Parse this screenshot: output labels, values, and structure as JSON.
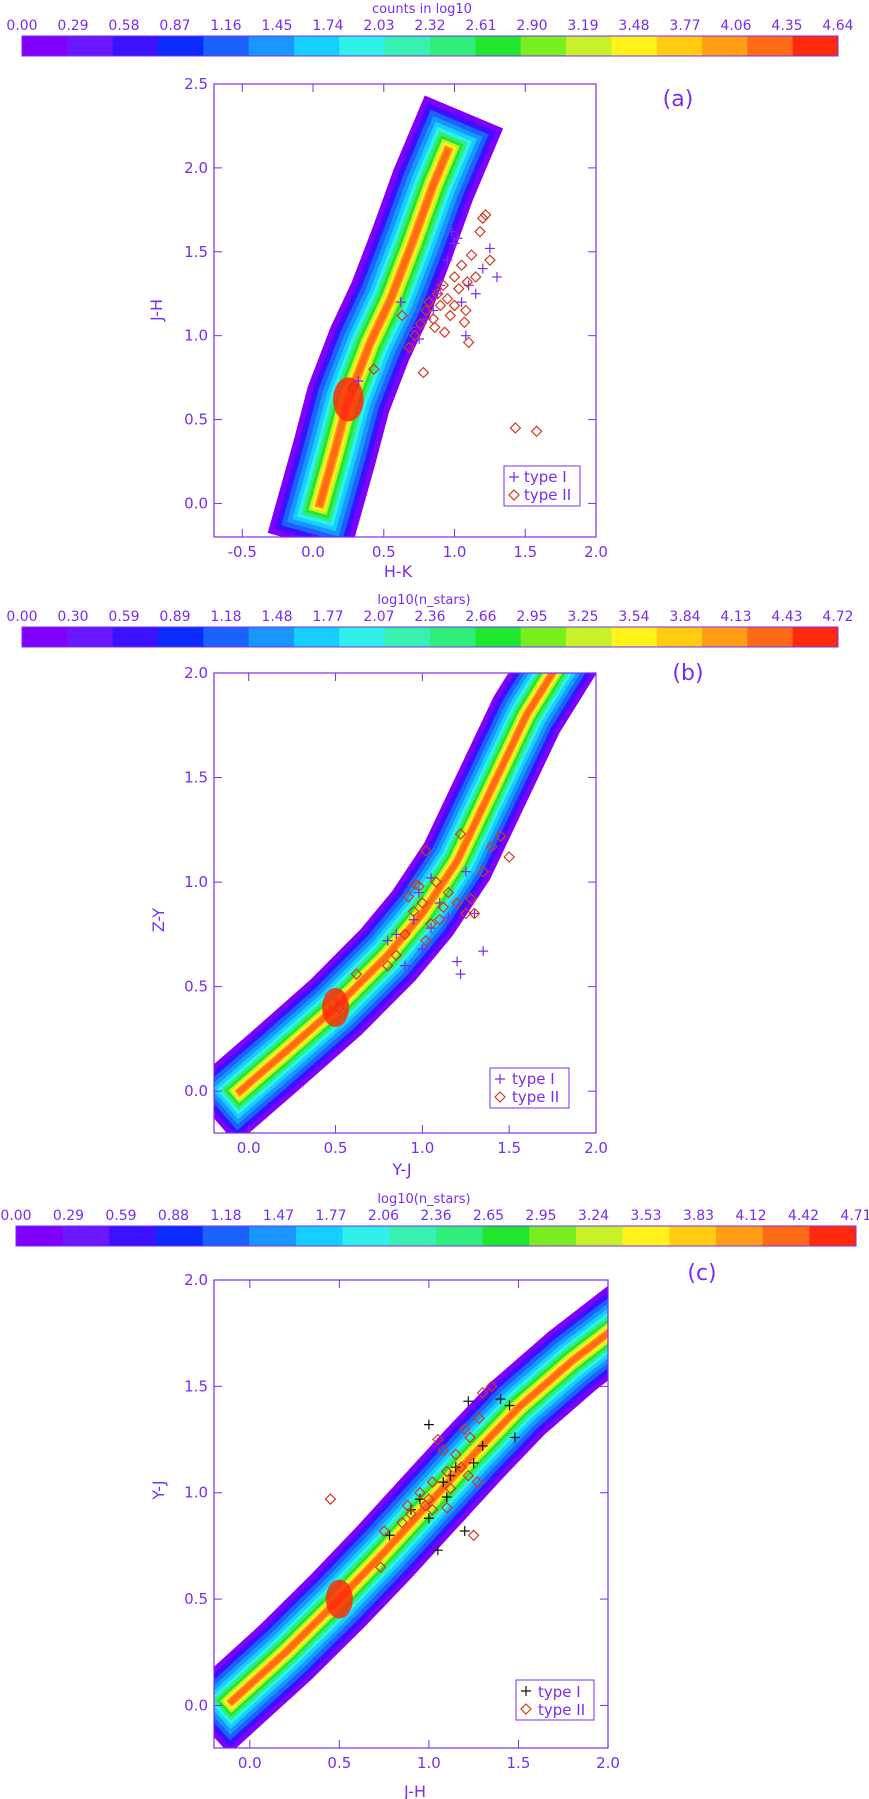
{
  "colors": {
    "axis": "#7a2cf0",
    "type1_marker": "#7a2cf0",
    "type1_marker_c": "#111111",
    "type2_marker": "#d23a1e",
    "palette": [
      "#7f00ff",
      "#6a18ff",
      "#3a12ff",
      "#0b2cff",
      "#1a63ff",
      "#1797ff",
      "#14cfff",
      "#2ff1ea",
      "#37f1b0",
      "#2fee7a",
      "#21e82e",
      "#79ef1f",
      "#c7f22a",
      "#fff31b",
      "#ffcc12",
      "#ff9d14",
      "#ff6a16",
      "#ff2a0c"
    ]
  },
  "colorbars": [
    {
      "title": "counts in log10",
      "ticks": [
        "0.00",
        "0.29",
        "0.58",
        "0.87",
        "1.16",
        "1.45",
        "1.74",
        "2.03",
        "2.32",
        "2.61",
        "2.90",
        "3.19",
        "3.48",
        "3.77",
        "4.06",
        "4.35",
        "4.64"
      ]
    },
    {
      "title": "log10(n_stars)",
      "ticks": [
        "0.00",
        "0.30",
        "0.59",
        "0.89",
        "1.18",
        "1.48",
        "1.77",
        "2.07",
        "2.36",
        "2.66",
        "2.95",
        "3.25",
        "3.54",
        "3.84",
        "4.13",
        "4.43",
        "4.72"
      ]
    },
    {
      "title": "log10(n_stars)",
      "ticks": [
        "0.00",
        "0.29",
        "0.59",
        "0.88",
        "1.18",
        "1.47",
        "1.77",
        "2.06",
        "2.36",
        "2.65",
        "2.95",
        "3.24",
        "3.53",
        "3.83",
        "4.12",
        "4.42",
        "4.71"
      ]
    }
  ],
  "chart_data": [
    {
      "type": "heatmap",
      "panel_label": "(a)",
      "xlabel": "H-K",
      "ylabel": "J-H",
      "xlim": [
        -0.7,
        2.0
      ],
      "ylim": [
        -0.2,
        2.5
      ],
      "xticks": [
        "-0.5",
        "0.0",
        "0.5",
        "1.0",
        "1.5",
        "2.0"
      ],
      "yticks": [
        "0.0",
        "0.5",
        "1.0",
        "1.5",
        "2.0",
        "2.5"
      ],
      "colorbar_title": "counts in log10",
      "density_ridge": [
        [
          0.05,
          0.0
        ],
        [
          0.15,
          0.3
        ],
        [
          0.25,
          0.62
        ],
        [
          0.4,
          0.95
        ],
        [
          0.55,
          1.22
        ],
        [
          0.7,
          1.55
        ],
        [
          0.85,
          1.9
        ],
        [
          0.95,
          2.1
        ]
      ],
      "legend": [
        "type I",
        "type II"
      ],
      "legend_position": "bottom-right",
      "series": [
        {
          "name": "type I",
          "marker": "plus",
          "x": [
            0.32,
            0.62,
            0.7,
            0.75,
            0.8,
            0.85,
            0.88,
            0.9,
            0.95,
            1.0,
            1.05,
            1.1,
            1.15,
            1.2,
            1.25,
            1.3,
            0.98,
            1.02,
            1.08
          ],
          "y": [
            0.73,
            1.2,
            1.05,
            0.98,
            1.1,
            1.15,
            1.25,
            1.3,
            1.45,
            1.55,
            1.2,
            1.3,
            1.25,
            1.4,
            1.52,
            1.35,
            1.62,
            1.58,
            1.0
          ]
        },
        {
          "name": "type II",
          "marker": "diamond",
          "x": [
            0.28,
            0.43,
            0.63,
            0.68,
            0.72,
            0.76,
            0.8,
            0.82,
            0.85,
            0.88,
            0.9,
            0.92,
            0.95,
            0.97,
            1.0,
            1.03,
            1.05,
            1.08,
            1.1,
            1.12,
            1.15,
            1.18,
            1.2,
            1.22,
            1.25,
            0.78,
            0.86,
            0.93,
            1.0,
            1.07,
            1.09,
            1.43,
            1.58
          ],
          "y": [
            0.69,
            0.8,
            1.12,
            0.93,
            1.0,
            1.07,
            1.15,
            1.2,
            1.1,
            1.25,
            1.18,
            1.3,
            1.22,
            1.12,
            1.35,
            1.28,
            1.42,
            1.15,
            0.96,
            1.48,
            1.35,
            1.62,
            1.7,
            1.72,
            1.45,
            0.78,
            1.05,
            1.02,
            1.18,
            1.08,
            1.32,
            0.45,
            0.43
          ]
        }
      ]
    },
    {
      "type": "heatmap",
      "panel_label": "(b)",
      "xlabel": "Y-J",
      "ylabel": "Z-Y",
      "xlim": [
        -0.2,
        2.0
      ],
      "ylim": [
        -0.2,
        2.0
      ],
      "xticks": [
        "0.0",
        "0.5",
        "1.0",
        "1.5",
        "2.0"
      ],
      "yticks": [
        "0.0",
        "0.5",
        "1.0",
        "1.5",
        "2.0"
      ],
      "colorbar_title": "log10(n_stars)",
      "density_ridge": [
        [
          -0.05,
          0.0
        ],
        [
          0.2,
          0.18
        ],
        [
          0.5,
          0.4
        ],
        [
          0.8,
          0.65
        ],
        [
          1.0,
          0.85
        ],
        [
          1.2,
          1.1
        ],
        [
          1.4,
          1.45
        ],
        [
          1.6,
          1.8
        ],
        [
          1.75,
          2.0
        ]
      ],
      "legend": [
        "type I",
        "type II"
      ],
      "legend_position": "bottom-right",
      "series": [
        {
          "name": "type I",
          "marker": "plus",
          "x": [
            0.8,
            0.85,
            0.9,
            0.95,
            1.0,
            1.05,
            1.1,
            1.15,
            1.2,
            1.22,
            1.25,
            1.3,
            1.35,
            1.05,
            0.98
          ],
          "y": [
            0.72,
            0.75,
            0.6,
            0.82,
            0.68,
            1.02,
            0.9,
            0.83,
            0.62,
            0.56,
            1.05,
            0.85,
            0.67,
            0.78,
            0.95
          ]
        },
        {
          "name": "type II",
          "marker": "diamond",
          "x": [
            0.52,
            0.62,
            0.8,
            0.85,
            0.9,
            0.92,
            0.95,
            0.98,
            1.0,
            1.02,
            1.05,
            1.08,
            1.1,
            1.12,
            1.15,
            1.2,
            1.22,
            1.25,
            1.28,
            1.3,
            1.35,
            1.4,
            1.45,
            1.5,
            1.02,
            0.96
          ],
          "y": [
            0.4,
            0.56,
            0.6,
            0.65,
            0.75,
            0.93,
            0.86,
            0.98,
            0.9,
            1.15,
            0.8,
            1.0,
            0.82,
            0.88,
            0.95,
            0.9,
            1.23,
            0.85,
            0.92,
            0.85,
            1.05,
            1.17,
            1.22,
            1.12,
            0.72,
            0.99
          ]
        }
      ]
    },
    {
      "type": "heatmap",
      "panel_label": "(c)",
      "xlabel": "J-H",
      "ylabel": "Y-J",
      "xlim": [
        -0.2,
        2.0
      ],
      "ylim": [
        -0.2,
        2.0
      ],
      "xticks": [
        "0.0",
        "0.5",
        "1.0",
        "1.5",
        "2.0"
      ],
      "yticks": [
        "0.0",
        "0.5",
        "1.0",
        "1.5",
        "2.0"
      ],
      "colorbar_title": "log10(n_stars)",
      "density_ridge": [
        [
          -0.1,
          0.02
        ],
        [
          0.2,
          0.25
        ],
        [
          0.5,
          0.5
        ],
        [
          0.75,
          0.72
        ],
        [
          1.0,
          0.95
        ],
        [
          1.25,
          1.18
        ],
        [
          1.5,
          1.4
        ],
        [
          1.8,
          1.62
        ],
        [
          2.0,
          1.75
        ]
      ],
      "legend": [
        "type I",
        "type II"
      ],
      "legend_position": "bottom-right",
      "series": [
        {
          "name": "type I",
          "marker": "plus",
          "x": [
            0.78,
            0.9,
            0.95,
            1.0,
            1.05,
            1.08,
            1.1,
            1.15,
            1.2,
            1.22,
            1.25,
            1.3,
            1.4,
            1.45,
            1.48,
            1.0,
            1.12
          ],
          "y": [
            0.8,
            0.92,
            0.97,
            1.32,
            0.73,
            1.05,
            0.98,
            1.12,
            0.82,
            1.43,
            1.14,
            1.22,
            1.44,
            1.41,
            1.26,
            0.88,
            1.08
          ]
        },
        {
          "name": "type II",
          "marker": "diamond",
          "x": [
            0.45,
            0.73,
            0.75,
            0.85,
            0.88,
            0.9,
            0.95,
            1.0,
            1.02,
            1.05,
            1.08,
            1.1,
            1.12,
            1.15,
            1.18,
            1.2,
            1.22,
            1.25,
            1.28,
            1.3,
            1.35,
            1.02,
            0.98,
            1.1,
            1.23,
            1.27
          ],
          "y": [
            0.97,
            0.65,
            0.82,
            0.86,
            0.94,
            0.9,
            1.0,
            0.97,
            1.05,
            1.25,
            1.2,
            1.1,
            1.02,
            1.18,
            1.12,
            1.3,
            1.08,
            0.8,
            1.35,
            1.47,
            1.5,
            0.92,
            0.94,
            0.93,
            1.26,
            1.05
          ]
        }
      ]
    }
  ]
}
